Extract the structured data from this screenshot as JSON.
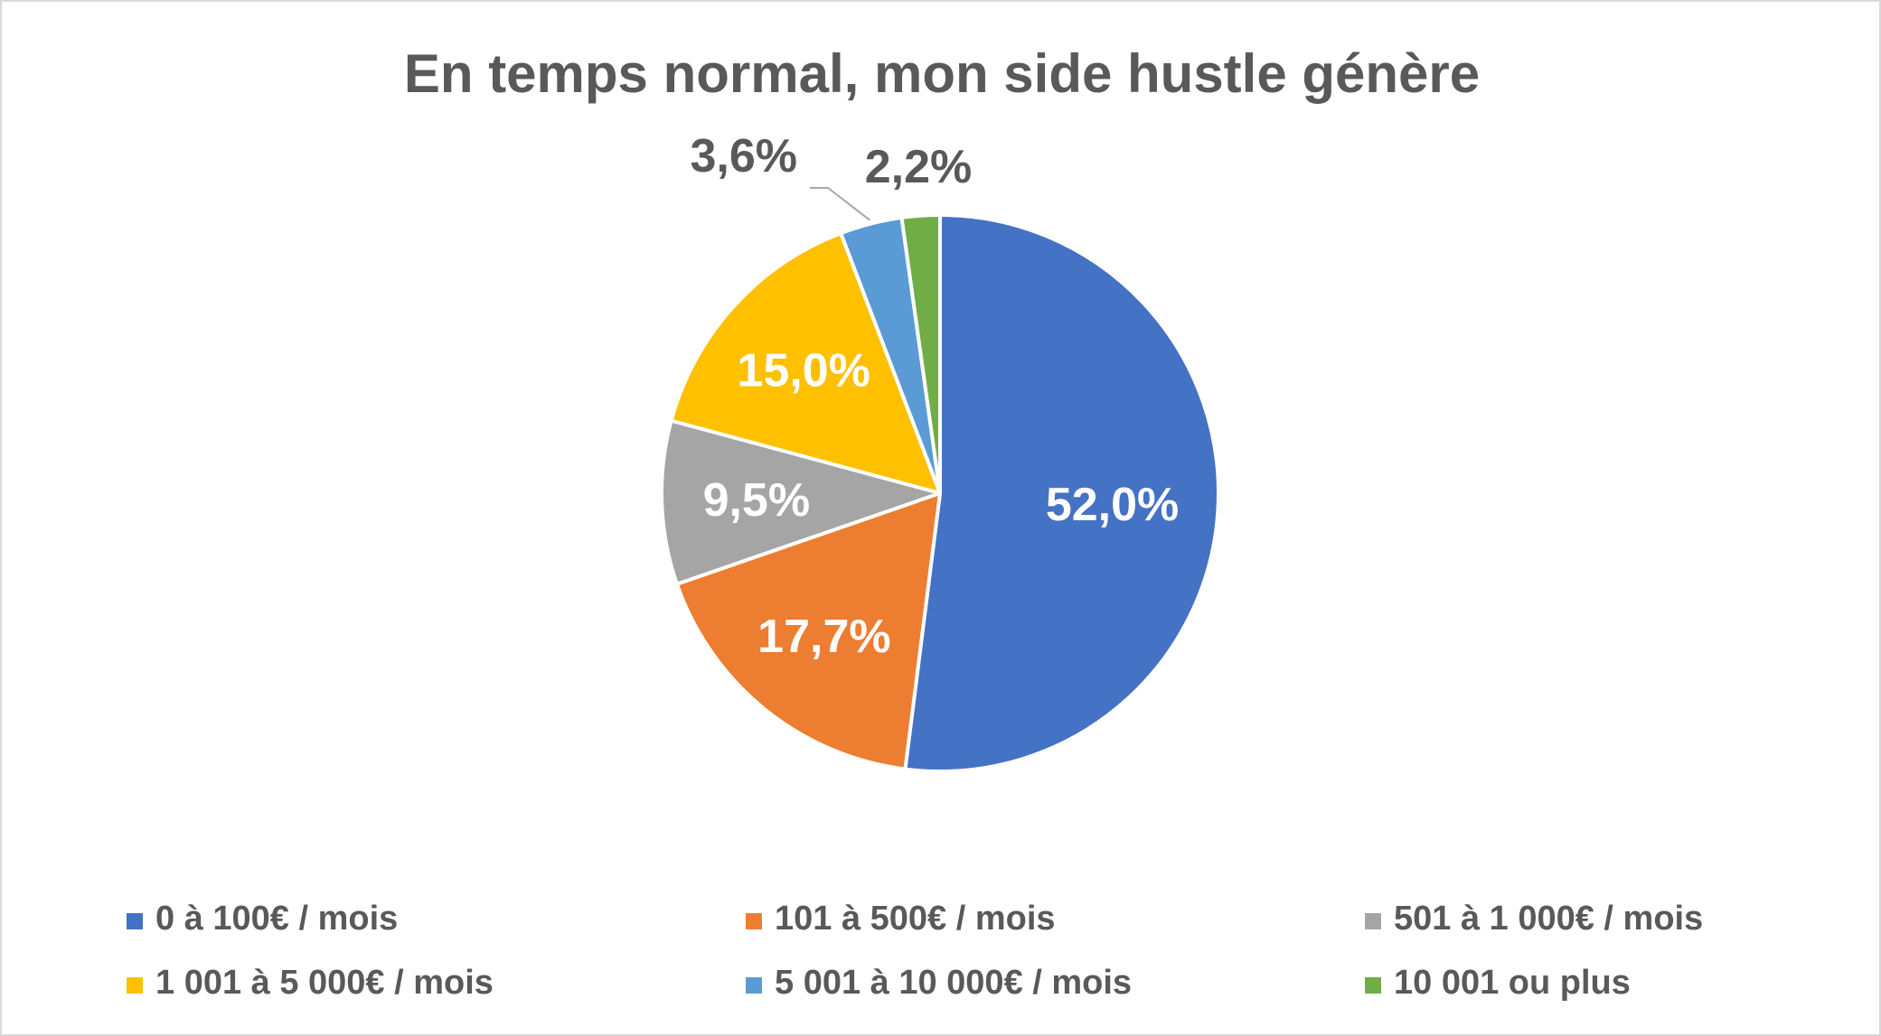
{
  "chart_data": {
    "type": "pie",
    "title": "En temps normal, mon side hustle génère",
    "start_angle_deg": 0,
    "direction": "clockwise",
    "legend_position": "bottom",
    "slices": [
      {
        "label": "0 à 100€ / mois",
        "value": 52.0,
        "display": "52,0%",
        "color": "#4472C4",
        "label_color": "#FFFFFF",
        "label_placement": "inside"
      },
      {
        "label": "101 à 500€ / mois",
        "value": 17.7,
        "display": "17,7%",
        "color": "#ED7D31",
        "label_color": "#FFFFFF",
        "label_placement": "inside"
      },
      {
        "label": "501 à 1 000€ / mois",
        "value": 9.5,
        "display": "9,5%",
        "color": "#A5A5A5",
        "label_color": "#FFFFFF",
        "label_placement": "inside"
      },
      {
        "label": "1 001 à 5 000€ / mois",
        "value": 15.0,
        "display": "15,0%",
        "color": "#FFC000",
        "label_color": "#FFFFFF",
        "label_placement": "inside"
      },
      {
        "label": "5 001 à 10 000€ / mois",
        "value": 3.6,
        "display": "3,6%",
        "color": "#5B9BD5",
        "label_color": "#595959",
        "label_placement": "outside-leader"
      },
      {
        "label": "10 001 ou plus",
        "value": 2.2,
        "display": "2,2%",
        "color": "#70AD47",
        "label_color": "#595959",
        "label_placement": "outside"
      }
    ]
  }
}
